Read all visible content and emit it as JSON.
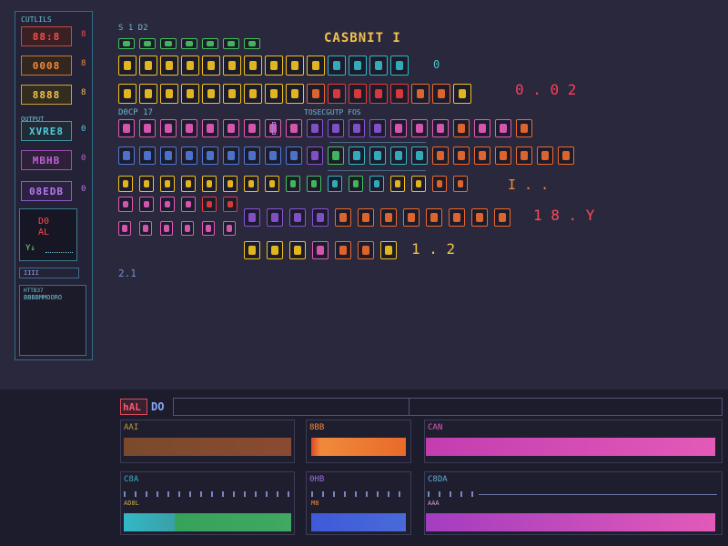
{
  "side_panel": {
    "title": "CUTLILS",
    "buttons": [
      {
        "label": "88:8",
        "color": "#ff4b45",
        "border": "#c84a3f",
        "bg": "#3a2025",
        "mark": "8"
      },
      {
        "label": "0008",
        "color": "#f08a3a",
        "border": "#c6793a",
        "bg": "#33261f",
        "mark": "8"
      },
      {
        "label": "8888",
        "color": "#f2c24e",
        "border": "#c8a23e",
        "bg": "#332d1e",
        "mark": "8"
      },
      {
        "label": "XVRE8",
        "color": "#53c9dc",
        "border": "#3e97a8",
        "bg": "#1f2c36",
        "mark": "0"
      },
      {
        "label": "MBHB",
        "color": "#c060d8",
        "border": "#a04fb8",
        "bg": "#2d2038",
        "mark": "0"
      },
      {
        "label": "08EDB",
        "color": "#b878f0",
        "border": "#8f5cc7",
        "bg": "#2a2240",
        "mark": "0"
      }
    ],
    "section_label": "OUTPUT",
    "display": {
      "line1": "D0",
      "line2": "AL",
      "line3": "Y↓"
    },
    "bar_label": "IIII",
    "log": {
      "title": "HTTB37",
      "subtitle": "BBBBMMOORO"
    }
  },
  "main": {
    "title": "CASBNIT I",
    "top_label": "S 1 D2",
    "label_row2": "D0CP 17",
    "label_row3": "TOSECGUTP FOS",
    "footer_label": "2.1",
    "dots_a": "· ″",
    "row_values": [
      "0",
      "0 . 0  2",
      "I . .",
      "1 8 . Y",
      "1 . 2"
    ]
  },
  "lower": {
    "tab": "hAL",
    "tab_label": "DO",
    "cards": [
      {
        "label": "AAI"
      },
      {
        "label": "8BB"
      },
      {
        "label": "CAN"
      },
      {
        "label": "C8A"
      },
      {
        "label": "0HB"
      },
      {
        "label": "C8DA"
      }
    ],
    "sublabels": [
      "AD8L",
      "M8",
      "AAA"
    ]
  },
  "colors": {
    "yellow": "#f2c21c",
    "orange": "#ee6a2c",
    "red": "#ea3b3a",
    "pink": "#e35ab8",
    "cyan": "#33b7c6",
    "green": "#44c25e",
    "purple": "#8b52d6",
    "blue": "#4f7ad8"
  }
}
